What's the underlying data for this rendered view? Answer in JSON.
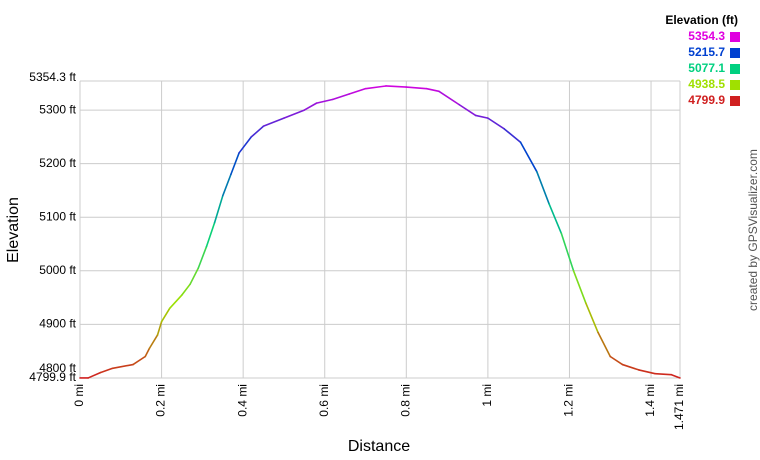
{
  "chart_data": {
    "type": "line",
    "x_label": "Distance",
    "y_label": "Elevation",
    "credit": "created by GPSVisualizer.com",
    "legend_title": "Elevation (ft)",
    "legend": [
      {
        "value": 5354.3,
        "color": "#e000e0"
      },
      {
        "value": 5215.7,
        "color": "#0040d0"
      },
      {
        "value": 5077.1,
        "color": "#00d080"
      },
      {
        "value": 4938.5,
        "color": "#a0e000"
      },
      {
        "value": 4799.9,
        "color": "#d02020"
      }
    ],
    "grid": true,
    "xlim": [
      0,
      1.471
    ],
    "ylim": [
      4799.9,
      5354.3
    ],
    "xticks": [
      {
        "value": 0,
        "label": "0 mi"
      },
      {
        "value": 0.2,
        "label": "0.2 mi"
      },
      {
        "value": 0.4,
        "label": "0.4 mi"
      },
      {
        "value": 0.6,
        "label": "0.6 mi"
      },
      {
        "value": 0.8,
        "label": "0.8 mi"
      },
      {
        "value": 1,
        "label": "1 mi"
      },
      {
        "value": 1.2,
        "label": "1.2 mi"
      },
      {
        "value": 1.4,
        "label": "1.4 mi"
      },
      {
        "value": 1.471,
        "label": "1.471 mi"
      }
    ],
    "yticks": [
      {
        "value": 4799.9,
        "label": "4799.9 ft"
      },
      {
        "value": 4800,
        "label": "4800 ft"
      },
      {
        "value": 4900,
        "label": "4900 ft"
      },
      {
        "value": 5000,
        "label": "5000 ft"
      },
      {
        "value": 5100,
        "label": "5100 ft"
      },
      {
        "value": 5200,
        "label": "5200 ft"
      },
      {
        "value": 5300,
        "label": "5300 ft"
      },
      {
        "value": 5354.3,
        "label": "5354.3 ft"
      }
    ],
    "x": [
      0,
      0.02,
      0.05,
      0.08,
      0.13,
      0.16,
      0.17,
      0.19,
      0.2,
      0.22,
      0.25,
      0.27,
      0.29,
      0.31,
      0.33,
      0.35,
      0.37,
      0.39,
      0.42,
      0.45,
      0.5,
      0.55,
      0.58,
      0.62,
      0.66,
      0.7,
      0.75,
      0.8,
      0.85,
      0.88,
      0.93,
      0.97,
      1.0,
      1.04,
      1.08,
      1.12,
      1.15,
      1.18,
      1.21,
      1.24,
      1.27,
      1.3,
      1.33,
      1.37,
      1.41,
      1.45,
      1.471
    ],
    "series": [
      {
        "values": [
          4800,
          4800,
          4810,
          4818,
          4825,
          4840,
          4855,
          4880,
          4905,
          4930,
          4955,
          4975,
          5005,
          5045,
          5090,
          5140,
          5180,
          5220,
          5250,
          5270,
          5285,
          5300,
          5313,
          5320,
          5330,
          5340,
          5345,
          5343,
          5340,
          5335,
          5310,
          5290,
          5285,
          5265,
          5240,
          5185,
          5125,
          5070,
          5000,
          4940,
          4885,
          4840,
          4825,
          4815,
          4808,
          4806,
          4800
        ]
      }
    ]
  }
}
